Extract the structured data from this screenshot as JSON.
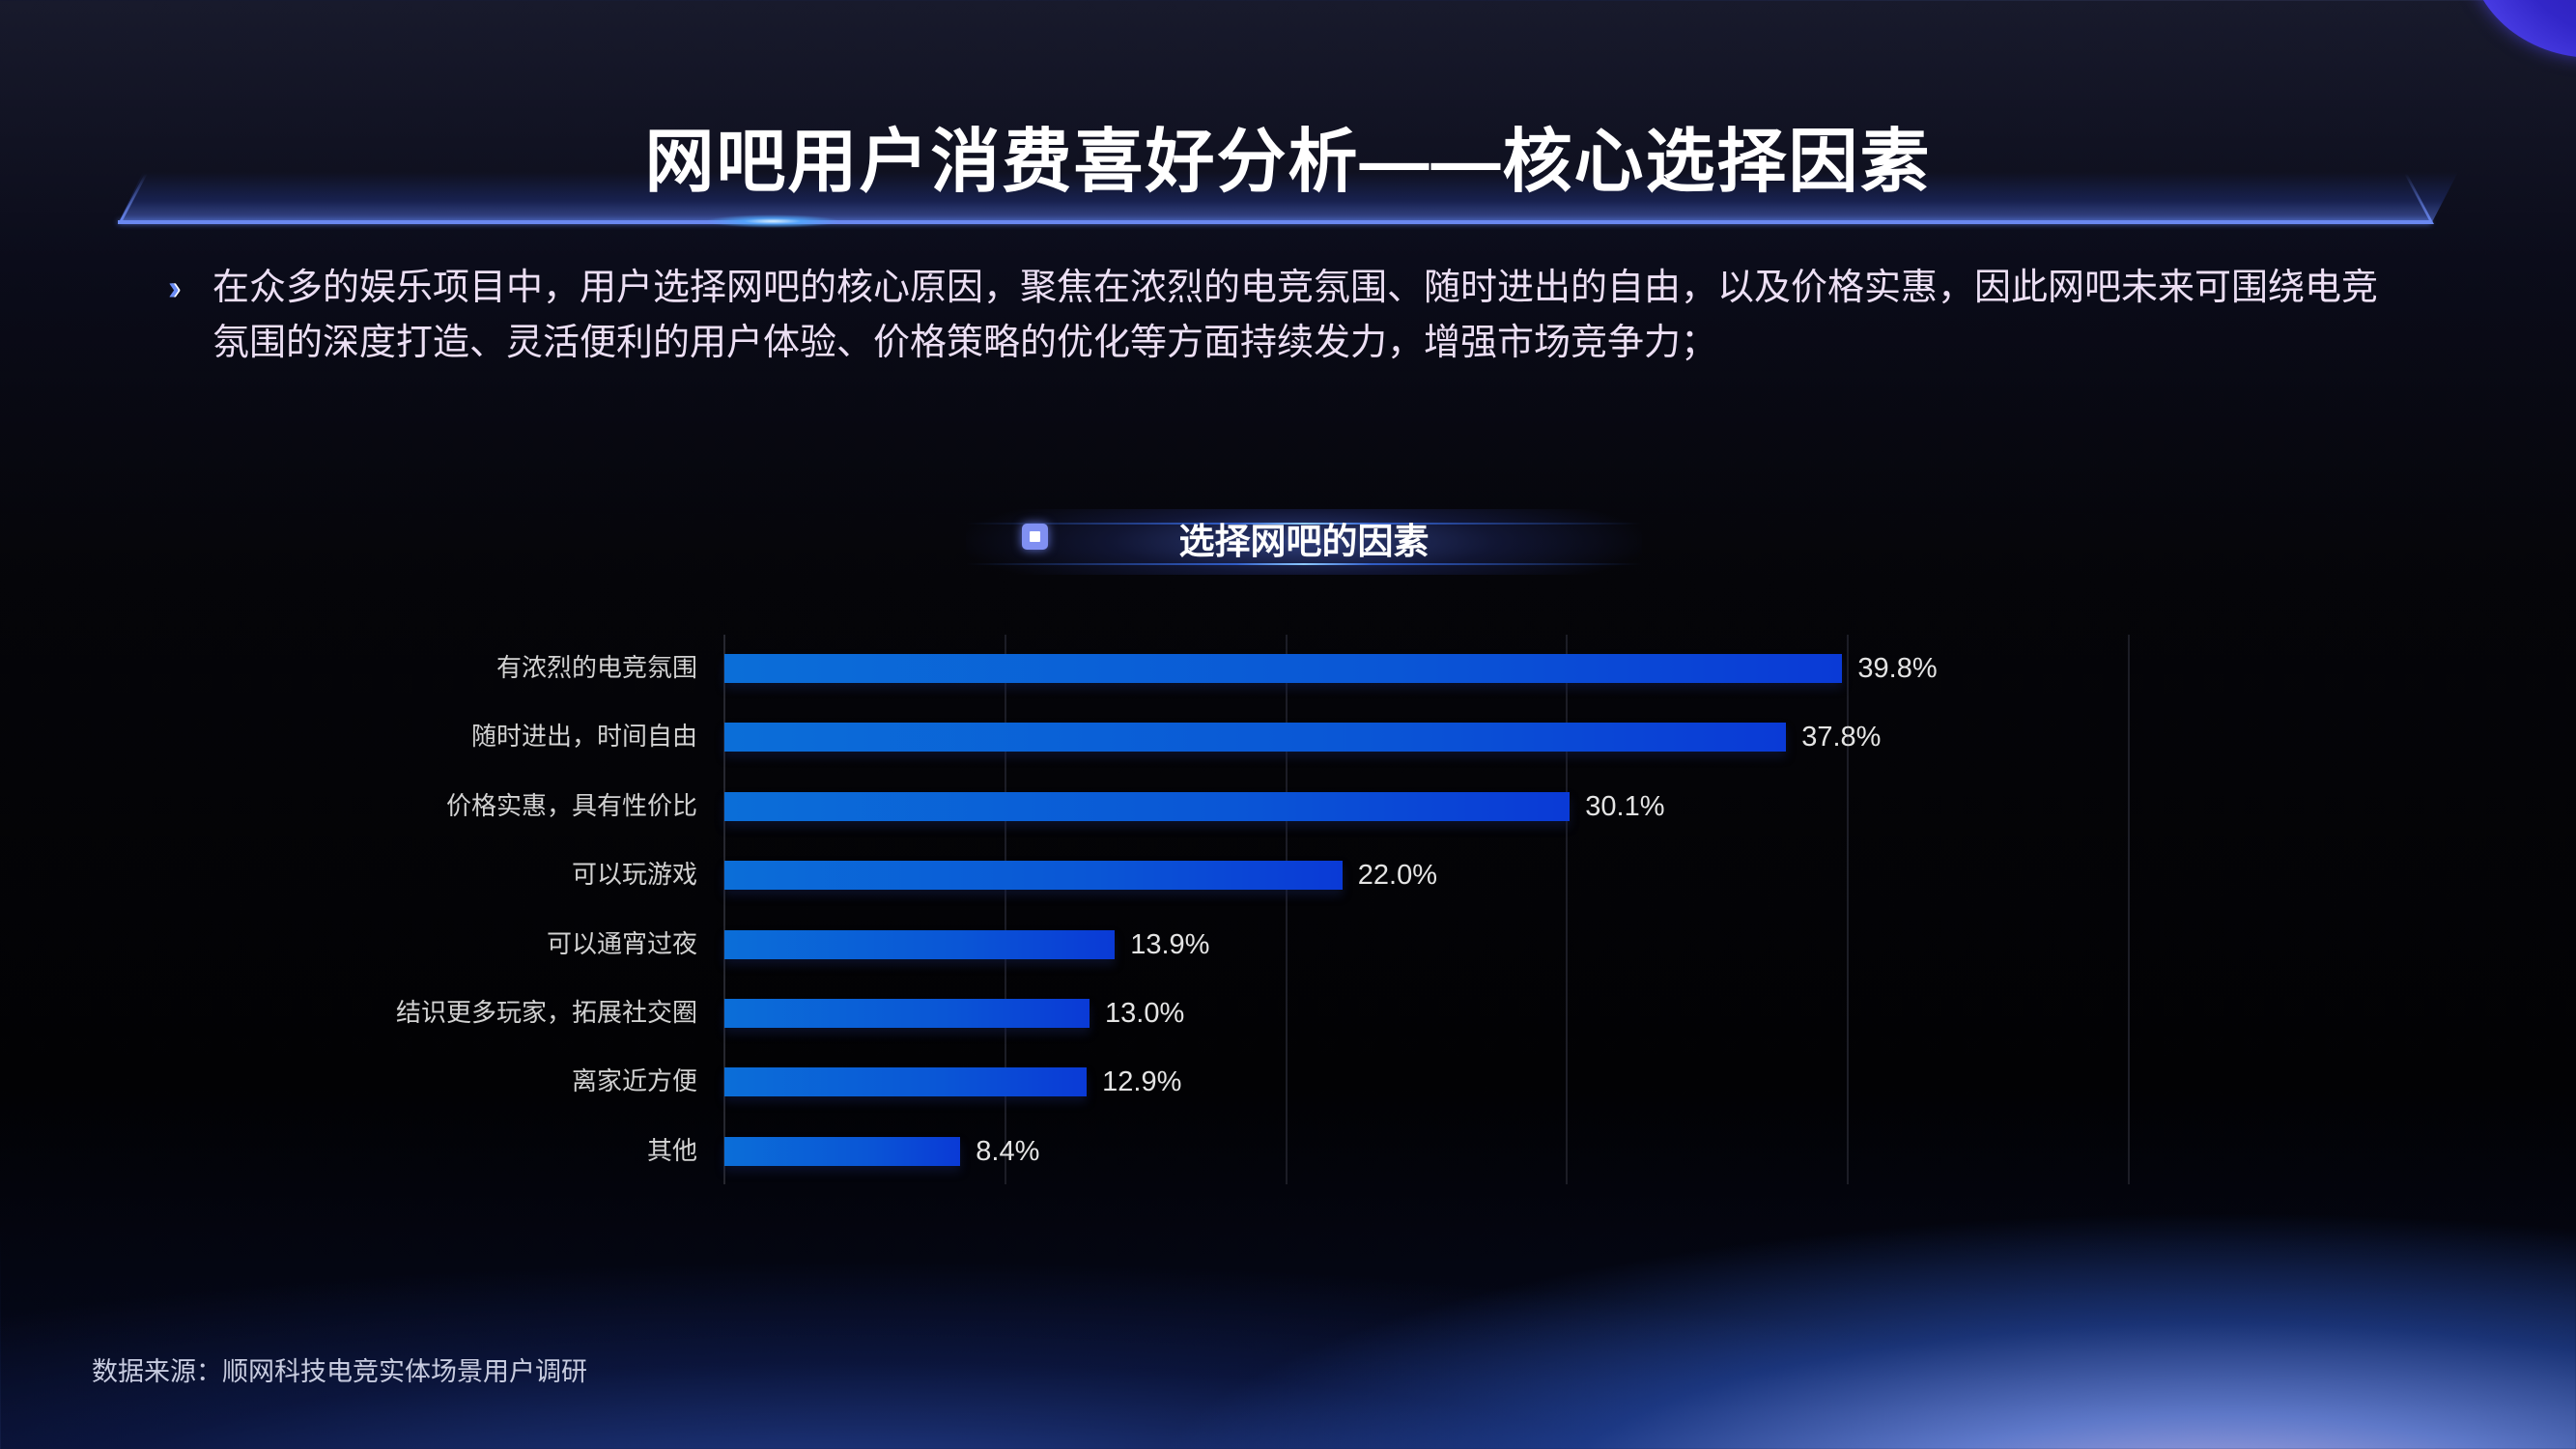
{
  "title": "网吧用户消费喜好分析——核心选择因素",
  "summary": {
    "bullet_icon": "double-chevron-right-icon",
    "text": "在众多的娱乐项目中，用户选择网吧的核心原因，聚焦在浓烈的电竞氛围、随时进出的自由，以及价格实惠，因此网吧未来可围绕电竞氛围的深度打造、灵活便利的用户体验、价格策略的优化等方面持续发力，增强市场竞争力；"
  },
  "chart_header": {
    "icon": "square-bullet-icon",
    "title": "选择网吧的因素"
  },
  "source": "数据来源：顺网科技电竞实体场景用户调研",
  "colors": {
    "bar_start": "#0b6ed8",
    "bar_end": "#0a3ad6",
    "title_line": "#6a88f0",
    "accent_icon": "#8090f2"
  },
  "chart_data": {
    "type": "bar",
    "orientation": "horizontal",
    "title": "选择网吧的因素",
    "xlabel": "",
    "ylabel": "",
    "xlim": [
      0,
      50
    ],
    "grid": true,
    "gridlines_at": [
      0,
      10,
      20,
      30,
      40,
      50
    ],
    "legend": "none",
    "unit": "%",
    "categories": [
      "有浓烈的电竞氛围",
      "随时进出，时间自由",
      "价格实惠，具有性价比",
      "可以玩游戏",
      "可以通宵过夜",
      "结识更多玩家，拓展社交圈",
      "离家近方便",
      "其他"
    ],
    "values": [
      39.8,
      37.8,
      30.1,
      22.0,
      13.9,
      13.0,
      12.9,
      8.4
    ],
    "labels": [
      "39.8%",
      "37.8%",
      "30.1%",
      "22.0%",
      "13.9%",
      "13.0%",
      "12.9%",
      "8.4%"
    ]
  }
}
